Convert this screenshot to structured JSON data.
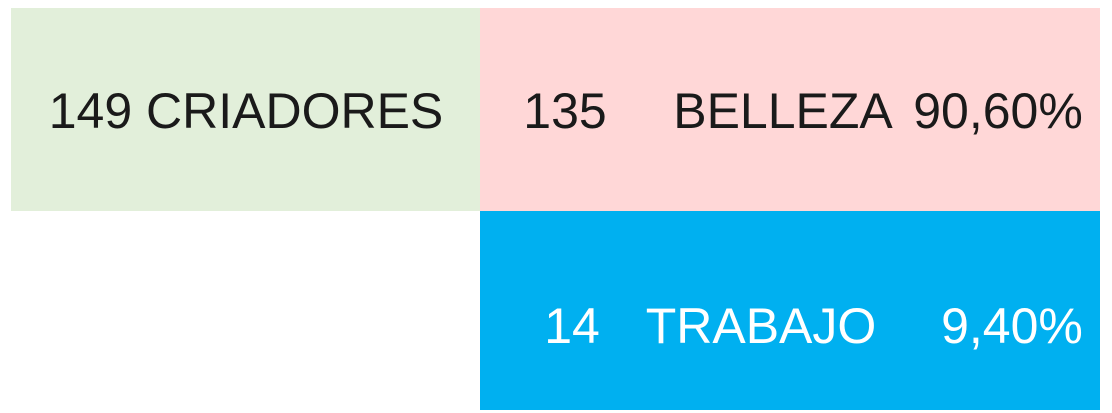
{
  "total": "149 CRIADORES",
  "rows": [
    {
      "count": "135",
      "category": "BELLEZA",
      "percent": "90,60%"
    },
    {
      "count": "14",
      "category": "TRABAJO",
      "percent": "9,40%"
    }
  ]
}
